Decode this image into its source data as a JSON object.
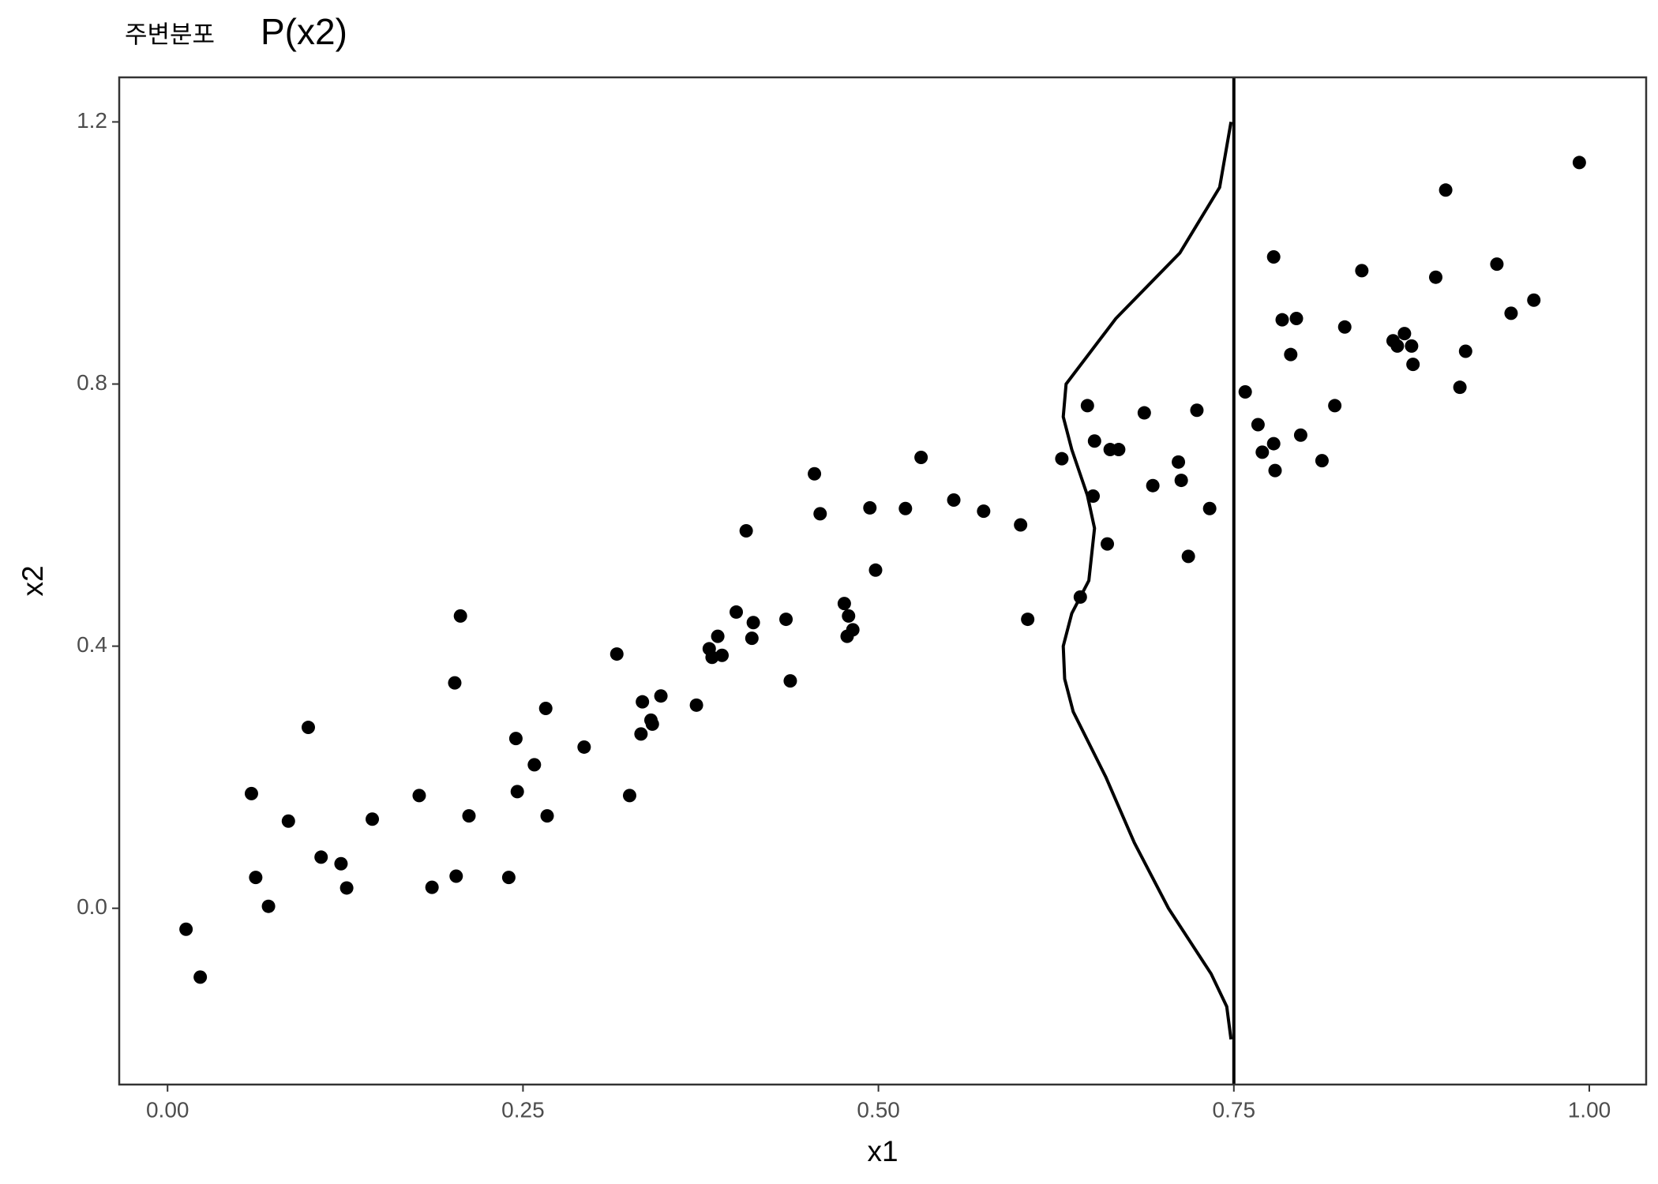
{
  "chart_data": {
    "type": "scatter",
    "title": "주변분포",
    "title_formula": "P(x2)",
    "x_label": "x1",
    "y_label": "x2",
    "xlim": [
      -0.034,
      1.04
    ],
    "ylim": [
      -0.269,
      1.268
    ],
    "xticks": [
      {
        "value": 0,
        "label": "0.00"
      },
      {
        "value": 0.25,
        "label": "0.25"
      },
      {
        "value": 0.5,
        "label": "0.50"
      },
      {
        "value": 0.75,
        "label": "0.75"
      },
      {
        "value": 1,
        "label": "1.00"
      }
    ],
    "yticks": [
      {
        "value": 0,
        "label": "0.0"
      },
      0.4,
      0.8,
      1.2
    ],
    "grid": false,
    "color": "#000000",
    "vline": 0.75,
    "series": [
      {
        "x": [
          0.013,
          0.023,
          0.059,
          0.062,
          0.071,
          0.085,
          0.099,
          0.108,
          0.122,
          0.126,
          0.144,
          0.177,
          0.186,
          0.202,
          0.203,
          0.206,
          0.212,
          0.24,
          0.245,
          0.246,
          0.258,
          0.266,
          0.267,
          0.293,
          0.316,
          0.325,
          0.333,
          0.334,
          0.34,
          0.341,
          0.347,
          0.372,
          0.381,
          0.383,
          0.387,
          0.39,
          0.4,
          0.407,
          0.411,
          0.412,
          0.435,
          0.438,
          0.455,
          0.459,
          0.476,
          0.478,
          0.479,
          0.482,
          0.494,
          0.498,
          0.519,
          0.53,
          0.553,
          0.574,
          0.6,
          0.605,
          0.629,
          0.642,
          0.647,
          0.651,
          0.652,
          0.661,
          0.663,
          0.669,
          0.687,
          0.693,
          0.711,
          0.713,
          0.718,
          0.724,
          0.733,
          0.758,
          0.767,
          0.77,
          0.778,
          0.778,
          0.779,
          0.784,
          0.79,
          0.794,
          0.797,
          0.812,
          0.821,
          0.828,
          0.84,
          0.862,
          0.865,
          0.87,
          0.875,
          0.876,
          0.892,
          0.899,
          0.909,
          0.913,
          0.935,
          0.945,
          0.961,
          0.993
        ],
        "values": [
          -0.032,
          -0.105,
          0.175,
          0.047,
          0.003,
          0.133,
          0.276,
          0.078,
          0.068,
          0.031,
          0.136,
          0.172,
          0.032,
          0.344,
          0.049,
          0.446,
          0.141,
          0.047,
          0.259,
          0.178,
          0.219,
          0.305,
          0.141,
          0.246,
          0.388,
          0.172,
          0.266,
          0.315,
          0.287,
          0.281,
          0.324,
          0.31,
          0.396,
          0.383,
          0.415,
          0.386,
          0.452,
          0.576,
          0.412,
          0.436,
          0.441,
          0.347,
          0.663,
          0.602,
          0.465,
          0.415,
          0.446,
          0.425,
          0.611,
          0.516,
          0.61,
          0.688,
          0.623,
          0.606,
          0.585,
          0.441,
          0.686,
          0.475,
          0.767,
          0.629,
          0.713,
          0.556,
          0.7,
          0.7,
          0.756,
          0.645,
          0.681,
          0.653,
          0.537,
          0.76,
          0.61,
          0.788,
          0.738,
          0.696,
          0.994,
          0.709,
          0.668,
          0.898,
          0.845,
          0.9,
          0.722,
          0.683,
          0.767,
          0.887,
          0.973,
          0.866,
          0.858,
          0.877,
          0.858,
          0.83,
          0.963,
          1.096,
          0.795,
          0.85,
          0.983,
          0.908,
          0.928,
          1.138
        ]
      }
    ],
    "density": {
      "x": [
        0.748,
        0.74,
        0.712,
        0.667,
        0.632,
        0.63,
        0.636,
        0.647,
        0.652,
        0.648,
        0.636,
        0.63,
        0.631,
        0.637,
        0.66,
        0.68,
        0.704,
        0.719,
        0.734,
        0.745,
        0.748
      ],
      "values": [
        1.2,
        1.1,
        1.0,
        0.9,
        0.8,
        0.75,
        0.7,
        0.63,
        0.58,
        0.5,
        0.45,
        0.4,
        0.35,
        0.3,
        0.2,
        0.1,
        0.0,
        -0.05,
        -0.1,
        -0.15,
        -0.2
      ]
    }
  }
}
